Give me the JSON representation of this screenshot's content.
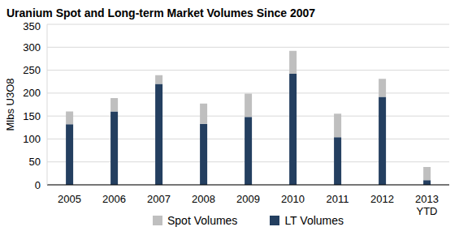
{
  "chart_data": {
    "type": "bar",
    "title": "Uranium Spot and Long-term Market Volumes Since 2007",
    "y_label": "Mlbs U3O8",
    "categories": [
      "2005",
      "2006",
      "2007",
      "2008",
      "2009",
      "2010",
      "2011",
      "2012",
      "2013 YTD"
    ],
    "series": [
      {
        "name": "LT Volumes",
        "color": "#243F60",
        "values": [
          132,
          160,
          220,
          133,
          148,
          242,
          104,
          192,
          10
        ]
      },
      {
        "name": "Spot Volumes",
        "color": "#BFBFBF",
        "values": [
          28,
          29,
          19,
          44,
          51,
          50,
          51,
          39,
          29
        ]
      }
    ],
    "stacked": true,
    "ylim": [
      0,
      350
    ],
    "yticks": [
      0,
      50,
      100,
      150,
      200,
      250,
      300,
      350
    ],
    "grid": true,
    "legend": "bottom"
  }
}
